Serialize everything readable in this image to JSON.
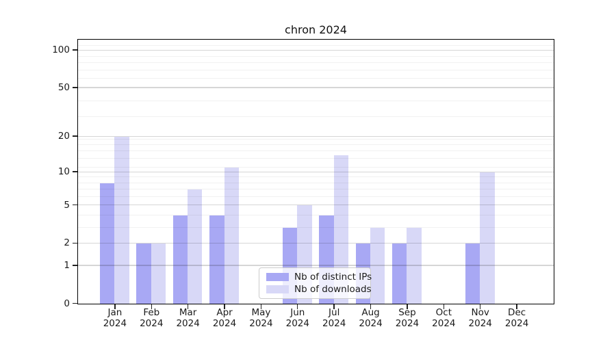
{
  "title": "chron 2024",
  "colors": {
    "ips_bar": "#a8a8f4",
    "downloads_bar": "#d8d8f7",
    "grid_major": "rgba(0,0,0,0.16)",
    "grid_minor": "rgba(0,0,0,0.055)",
    "spine": "#000000"
  },
  "legend": {
    "items": [
      {
        "label": "Nb of distinct IPs",
        "series": "ips"
      },
      {
        "label": "Nb of downloads",
        "series": "downloads"
      }
    ]
  },
  "chart_data": {
    "type": "bar",
    "title": "chron 2024",
    "xlabel": "",
    "ylabel": "",
    "scale": "log1p",
    "grid": true,
    "legend_position": "lower center inside plot",
    "categories": [
      "Jan 2024",
      "Feb 2024",
      "Mar 2024",
      "Apr 2024",
      "May 2024",
      "Jun 2024",
      "Jul 2024",
      "Aug 2024",
      "Sep 2024",
      "Oct 2024",
      "Nov 2024",
      "Dec 2024"
    ],
    "series": [
      {
        "name": "Nb of distinct IPs",
        "color": "#a8a8f4",
        "values": [
          8,
          2,
          4,
          4,
          0,
          3,
          4,
          2,
          2,
          0,
          2,
          0
        ]
      },
      {
        "name": "Nb of downloads",
        "color": "#d8d8f7",
        "values": [
          20,
          2,
          7,
          11,
          0,
          5,
          14,
          3,
          3,
          0,
          10,
          0
        ]
      }
    ],
    "ylim": [
      0,
      120
    ],
    "yticks": [
      0,
      1,
      2,
      5,
      10,
      20,
      50,
      100
    ],
    "minor_yticks": [
      3,
      4,
      6,
      7,
      8,
      9,
      11,
      13,
      15,
      17,
      19,
      29,
      39,
      59,
      69,
      79,
      89,
      109
    ]
  }
}
